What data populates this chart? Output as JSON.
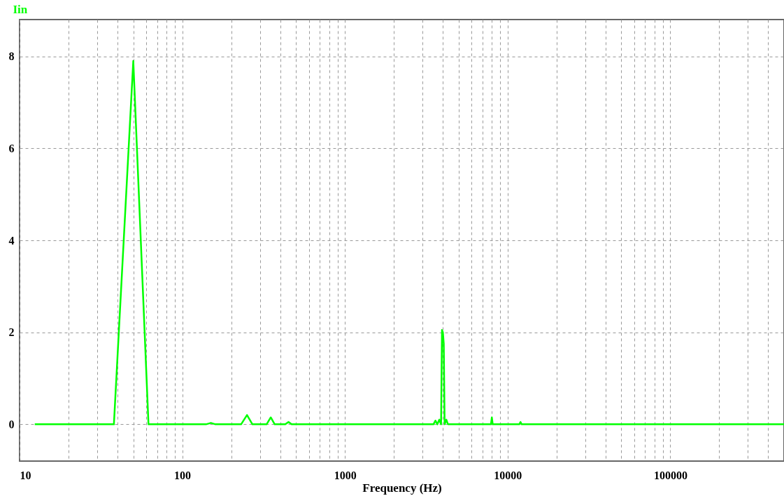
{
  "chart_data": {
    "type": "line",
    "ylabel": "Iin",
    "xlabel": "Frequency (Hz)",
    "log": "x",
    "grid": true,
    "xlim": [
      10,
      500000
    ],
    "xticks": [
      10,
      {
        "value": 20,
        "label": null
      },
      {
        "value": 30,
        "label": null
      },
      {
        "value": 40,
        "label": null
      },
      {
        "value": 50,
        "label": null
      },
      {
        "value": 60,
        "label": null
      },
      {
        "value": 70,
        "label": null
      },
      {
        "value": 80,
        "label": null
      },
      {
        "value": 90,
        "label": null
      },
      100,
      {
        "value": 200,
        "label": null
      },
      {
        "value": 300,
        "label": null
      },
      {
        "value": 400,
        "label": null
      },
      {
        "value": 500,
        "label": null
      },
      {
        "value": 600,
        "label": null
      },
      {
        "value": 700,
        "label": null
      },
      {
        "value": 800,
        "label": null
      },
      {
        "value": 900,
        "label": null
      },
      1000,
      {
        "value": 2000,
        "label": null
      },
      {
        "value": 3000,
        "label": null
      },
      {
        "value": 4000,
        "label": null
      },
      {
        "value": 5000,
        "label": null
      },
      {
        "value": 6000,
        "label": null
      },
      {
        "value": 7000,
        "label": null
      },
      {
        "value": 8000,
        "label": null
      },
      {
        "value": 9000,
        "label": null
      },
      10000,
      {
        "value": 20000,
        "label": null
      },
      {
        "value": 30000,
        "label": null
      },
      {
        "value": 40000,
        "label": null
      },
      {
        "value": 50000,
        "label": null
      },
      {
        "value": 60000,
        "label": null
      },
      {
        "value": 70000,
        "label": null
      },
      {
        "value": 80000,
        "label": null
      },
      {
        "value": 90000,
        "label": null
      },
      100000,
      {
        "value": 200000,
        "label": null
      },
      {
        "value": 300000,
        "label": null
      },
      {
        "value": 400000,
        "label": null
      }
    ],
    "ylim": [
      -0.8,
      8.8
    ],
    "yticks": [
      0,
      2,
      4,
      6,
      8
    ],
    "x": [
      12.4,
      38,
      50,
      62,
      140,
      150,
      160,
      230,
      250,
      270,
      330,
      350,
      370,
      430,
      450,
      470,
      1500,
      3500,
      3600,
      3700,
      3800,
      3900,
      3950,
      4000,
      4050,
      4100,
      4200,
      4300,
      7900,
      8000,
      8100,
      11800,
      12000,
      12200,
      500000
    ],
    "series": [
      {
        "color": "#00ff00",
        "values": [
          0,
          0,
          7.9,
          0,
          0,
          0.03,
          0,
          0,
          0.2,
          0,
          0,
          0.15,
          0,
          0,
          0.05,
          0,
          0,
          0,
          0.08,
          0,
          0.1,
          0,
          2.05,
          2.0,
          1.75,
          0,
          0.1,
          0,
          0,
          0.15,
          0,
          0,
          0.05,
          0,
          0
        ]
      }
    ]
  }
}
